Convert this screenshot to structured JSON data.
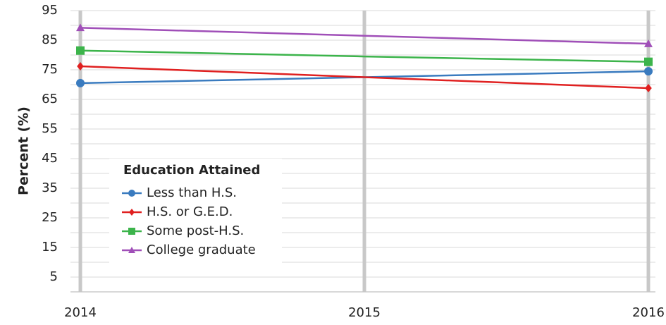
{
  "chart_data": {
    "type": "line",
    "y_axis_label": "Percent (%)",
    "legend_title": "Education Attained",
    "categories": [
      "2014",
      "2015",
      "2016"
    ],
    "ylim": [
      0,
      95
    ],
    "yticks": [
      5,
      15,
      25,
      35,
      45,
      55,
      65,
      75,
      85,
      95
    ],
    "minor_grid": [
      10,
      20,
      30,
      40,
      50,
      60,
      70,
      80,
      90
    ],
    "grid": true,
    "legend_position": "lower left",
    "series": [
      {
        "name": "Less than H.S.",
        "color": "#3a7bbf",
        "marker": "circle",
        "values": [
          70.5,
          72.5,
          74.5
        ]
      },
      {
        "name": "H.S. or G.E.D.",
        "color": "#e02020",
        "marker": "diamond",
        "values": [
          76.2,
          72.5,
          68.8
        ]
      },
      {
        "name": "Some post-H.S.",
        "color": "#3cb44b",
        "marker": "square",
        "values": [
          81.5,
          79.5,
          77.7
        ]
      },
      {
        "name": "College graduate",
        "color": "#a04fb8",
        "marker": "triangle",
        "values": [
          89.2,
          86.5,
          83.8
        ]
      }
    ]
  }
}
